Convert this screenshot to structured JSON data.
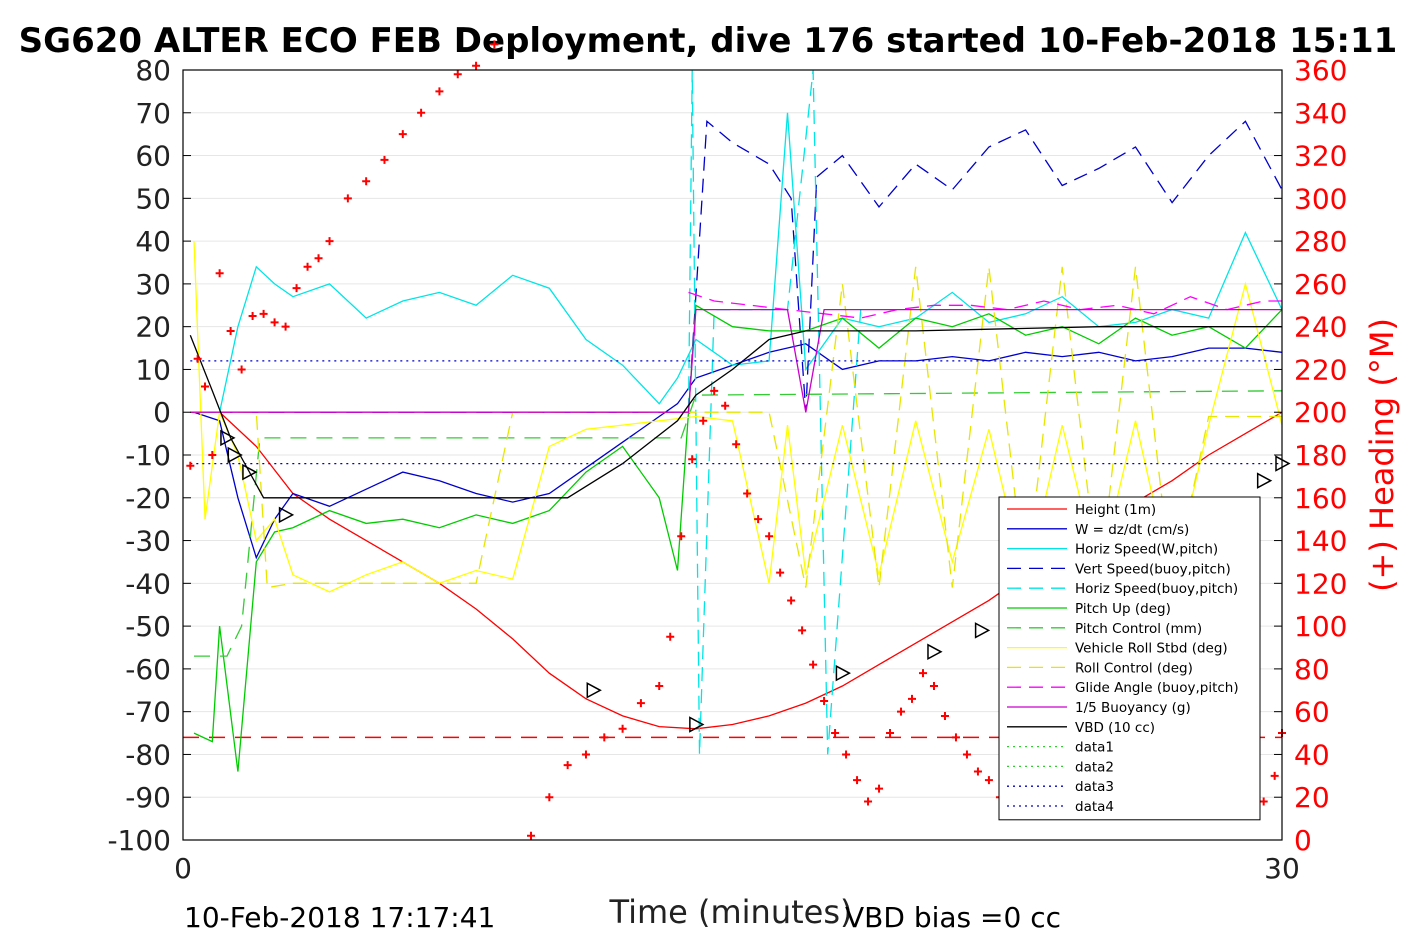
{
  "title": "SG620 ALTER ECO FEB Deployment, dive 176 started 10-Feb-2018 15:11",
  "footer": {
    "timestamp": "10-Feb-2018 17:17:41",
    "vbd_bias": "VBD bias =0 cc"
  },
  "chart_data": {
    "type": "line",
    "xlabel": "Time (minutes)",
    "ylabel": "",
    "y2label": "(+) Heading (°M)",
    "xlim": [
      0,
      30
    ],
    "ylim": [
      -100,
      80
    ],
    "y2lim": [
      0,
      360
    ],
    "x_ticks": [
      "0",
      "30"
    ],
    "y_ticks": [
      "80",
      "70",
      "60",
      "50",
      "40",
      "30",
      "20",
      "10",
      "0",
      "-10",
      "-20",
      "-30",
      "-40",
      "-50",
      "-60",
      "-70",
      "-80",
      "-90",
      "-100"
    ],
    "y2_ticks": [
      "360",
      "340",
      "320",
      "300",
      "280",
      "260",
      "240",
      "220",
      "200",
      "180",
      "160",
      "140",
      "120",
      "100",
      "80",
      "60",
      "40",
      "20",
      "0"
    ],
    "grid": true,
    "legend_position": "bottom-right",
    "colors": {
      "height": "#ff0000",
      "w": "#0000cc",
      "horiz_speed": "#00e5e5",
      "vert_speed_buoy": "#0000cc",
      "horiz_speed_buoy": "#00e5e5",
      "pitch_up": "#00cc00",
      "pitch_control": "#33cc33",
      "roll": "#ffff00",
      "roll_control": "#e6e600",
      "glide_angle": "#ff00ff",
      "buoyancy": "#cc00cc",
      "vbd": "#000000",
      "heading": "#ff0000"
    },
    "series": [
      {
        "name": "Height (1m)",
        "color": "#ff0000",
        "dash": "",
        "x": [
          0.2,
          1,
          2,
          3,
          4,
          5,
          6,
          7,
          8,
          9,
          10,
          11,
          12,
          13,
          14,
          15,
          16,
          17,
          18,
          19,
          20,
          21,
          22,
          23,
          24,
          25,
          26,
          27,
          28,
          29,
          30.0
        ],
        "y": [
          0,
          0,
          -8,
          -19,
          -25,
          -30,
          -35,
          -40,
          -46,
          -53,
          -61,
          -67,
          -71,
          -73.5,
          -74,
          -73,
          -71,
          -68,
          -64,
          -59,
          -54,
          -49,
          -44,
          -38,
          -32,
          -26,
          -21,
          -16,
          -10,
          -5,
          0
        ]
      },
      {
        "name": "W = dz/dt (cm/s)",
        "color": "#0000cc",
        "dash": "",
        "x": [
          0.3,
          1,
          1.5,
          2,
          2.5,
          3,
          4,
          5,
          6,
          7,
          8,
          9,
          10,
          11,
          12,
          13,
          13.5,
          14,
          15,
          16,
          17,
          18,
          19,
          20,
          21,
          22,
          23,
          24,
          25,
          26,
          27,
          28,
          29,
          30.0
        ],
        "y": [
          0,
          -2,
          -20,
          -34,
          -25,
          -19,
          -22,
          -18,
          -14,
          -16,
          -19,
          -21,
          -19,
          -13,
          -7,
          -1,
          2,
          8,
          11,
          14,
          16,
          10,
          12,
          12,
          13,
          12,
          14,
          13,
          14,
          12,
          13,
          15,
          15,
          14
        ]
      },
      {
        "name": "Horiz Speed(W,pitch)",
        "color": "#00e5e5",
        "dash": "",
        "x": [
          0.3,
          1,
          1.5,
          2,
          2.5,
          3,
          4,
          5,
          6,
          7,
          8,
          9,
          10,
          11,
          12,
          13,
          13.5,
          14,
          15,
          16,
          16.5,
          17,
          18,
          19,
          20,
          21,
          22,
          23,
          24,
          25,
          26,
          27,
          28,
          29,
          30.0
        ],
        "y": [
          0,
          0,
          20,
          34,
          30,
          27,
          30,
          22,
          26,
          28,
          25,
          32,
          29,
          17,
          11,
          2,
          8,
          17,
          11,
          12,
          70,
          10,
          22,
          20,
          22,
          28,
          21,
          23,
          27,
          20,
          21,
          24,
          22,
          42,
          24
        ]
      },
      {
        "name": "Vert Speed(buoy,pitch)",
        "color": "#0000cc",
        "dash": "14,8",
        "x": [
          13.8,
          14.3,
          15,
          16,
          16.6,
          17,
          17.3,
          18,
          19,
          20,
          21,
          22,
          23,
          24,
          25,
          26,
          27,
          28,
          29,
          30.0
        ],
        "y": [
          0,
          68,
          63,
          58,
          50,
          0,
          55,
          60,
          48,
          58,
          52,
          62,
          66,
          53,
          57,
          62,
          49,
          60,
          68,
          52
        ]
      },
      {
        "name": "Horiz Speed(buoy,pitch)",
        "color": "#00e5e5",
        "dash": "14,8",
        "x": [
          13.8,
          13.9,
          14.1,
          14.5,
          15.5,
          16.5,
          17.2,
          17.4,
          17.6,
          18.5
        ],
        "y": [
          0,
          80,
          -80,
          24,
          24,
          24,
          80,
          0,
          -80,
          24
        ]
      },
      {
        "name": "Pitch Up (deg)",
        "color": "#00cc00",
        "dash": "",
        "x": [
          0.3,
          0.8,
          1,
          1.5,
          2,
          2.5,
          3,
          4,
          5,
          6,
          7,
          8,
          9,
          10,
          11,
          12,
          13,
          13.5,
          14,
          15,
          16,
          17,
          18,
          19,
          20,
          21,
          22,
          23,
          24,
          25,
          26,
          27,
          28,
          29,
          30.0
        ],
        "y": [
          -75,
          -77,
          -50,
          -84,
          -35,
          -28,
          -27,
          -23,
          -26,
          -25,
          -27,
          -24,
          -26,
          -23,
          -14,
          -8,
          -20,
          -37,
          25,
          20,
          19,
          19,
          22,
          15,
          22,
          20,
          23,
          18,
          20,
          16,
          22,
          18,
          20,
          15,
          24
        ]
      },
      {
        "name": "Pitch Control (mm)",
        "color": "#33cc33",
        "dash": "16,10",
        "x": [
          0.3,
          1.2,
          1.6,
          2.1,
          2.6,
          3.2,
          13,
          13.6,
          14,
          30.0
        ],
        "y": [
          -57,
          -57,
          -50,
          -6,
          -6,
          -6,
          -6,
          -6,
          4,
          5
        ]
      },
      {
        "name": "Vehicle Roll Stbd (deg)",
        "color": "#ffff00",
        "dash": "",
        "x": [
          0.3,
          0.6,
          1,
          1.5,
          2,
          2.5,
          3,
          4,
          5,
          6,
          7,
          8,
          9,
          10,
          11,
          12,
          13,
          14,
          15,
          16,
          16.5,
          17,
          18,
          19,
          20,
          21,
          22,
          23,
          24,
          25,
          26,
          27,
          28,
          29,
          30.0
        ],
        "y": [
          40,
          -25,
          0,
          -10,
          -30,
          -25,
          -38,
          -42,
          -38,
          -35,
          -40,
          -37,
          -39,
          -8,
          -4,
          -3,
          -2,
          -1,
          -2,
          -40,
          -3,
          -38,
          -3,
          -38,
          -2,
          -35,
          -4,
          -40,
          -3,
          -38,
          -2,
          -40,
          -3,
          30,
          -3
        ]
      },
      {
        "name": "Roll Control (deg)",
        "color": "#e6e600",
        "dash": "14,8",
        "x": [
          0.3,
          2,
          2.3,
          3,
          5,
          8,
          9,
          13,
          16,
          17,
          18,
          19,
          20,
          21,
          22,
          23,
          24,
          25,
          26,
          27,
          28,
          29,
          30.0
        ],
        "y": [
          0,
          0,
          -41,
          -40,
          -40,
          -40,
          0,
          0,
          0,
          -41,
          30,
          -41,
          34,
          -41,
          34,
          -41,
          34,
          -41,
          34,
          -41,
          -1,
          -1,
          -1
        ]
      },
      {
        "name": "Glide Angle (buoy,pitch)",
        "color": "#ff00ff",
        "dash": "14,8",
        "x": [
          13.8,
          14.5,
          15.5,
          16.5,
          17.5,
          18.5,
          19.5,
          20.5,
          21.5,
          22.5,
          23.5,
          24.5,
          25.5,
          26.5,
          27.5,
          28.5,
          29.5,
          30.0
        ],
        "y": [
          28,
          26,
          25,
          24,
          23,
          22,
          24,
          25,
          25,
          24,
          26,
          24,
          25,
          23,
          27,
          24,
          26,
          26
        ]
      },
      {
        "name": "1/5 Buoyancy (g)",
        "color": "#cc00cc",
        "dash": "",
        "x": [
          0.2,
          13.8,
          14,
          16.5,
          17,
          17.5,
          30.0
        ],
        "y": [
          0,
          0,
          24,
          24,
          0,
          24,
          24
        ]
      },
      {
        "name": "VBD (10 cc)",
        "color": "#000000",
        "dash": "",
        "x": [
          0.2,
          0.8,
          1.3,
          2.2,
          3,
          6,
          10,
          10.5,
          12,
          13.5,
          14,
          15,
          16,
          17,
          18,
          19,
          20,
          25,
          30.0
        ],
        "y": [
          18,
          5,
          -6,
          -20,
          -20,
          -20,
          -20,
          -20,
          -12,
          -2,
          4,
          10,
          17,
          19,
          19,
          19,
          19,
          20,
          20
        ]
      },
      {
        "name": "data1",
        "color": "#33cc33",
        "dash": "2,4",
        "x": [],
        "y": []
      },
      {
        "name": "data2",
        "color": "#33cc33",
        "dash": "2,4",
        "x": [],
        "y": []
      },
      {
        "name": "data3",
        "color": "#0000cc",
        "dash": "2,4",
        "x": [
          0.2,
          30.0
        ],
        "y": [
          12,
          12
        ]
      },
      {
        "name": "data4",
        "color": "#0000cc",
        "dash": "2,4",
        "x": [
          0.2,
          30.0
        ],
        "y": [
          -12,
          -12
        ]
      }
    ],
    "reference_lines": [
      {
        "y": -76,
        "color": "#ff0000",
        "dash": "16,10"
      },
      {
        "y": 0,
        "color": "#8a2be2",
        "dash": "16,10",
        "x": [
          0.2,
          13.8
        ]
      }
    ],
    "heading_series": {
      "axis": "right",
      "color": "#ff0000",
      "x": [
        0.2,
        0.4,
        0.6,
        0.8,
        1,
        1.3,
        1.6,
        1.9,
        2.2,
        2.5,
        2.8,
        3.1,
        3.4,
        3.7,
        4,
        4.5,
        5,
        5.5,
        6,
        6.5,
        7,
        7.5,
        8,
        8.5,
        9.5,
        10,
        10.5,
        11,
        11.5,
        12,
        12.5,
        13,
        13.3,
        13.6,
        13.9,
        14.2,
        14.5,
        14.8,
        15.1,
        15.4,
        15.7,
        16,
        16.3,
        16.6,
        16.9,
        17.2,
        17.5,
        17.8,
        18.1,
        18.4,
        18.7,
        19,
        19.3,
        19.6,
        19.9,
        20.2,
        20.5,
        20.8,
        21.1,
        21.4,
        21.7,
        22,
        22.3,
        22.6,
        22.9,
        23.2,
        23.5,
        23.8,
        24.1,
        24.4,
        24.7,
        25,
        25.3,
        25.6,
        25.9,
        26.2,
        26.5,
        26.8,
        27.1,
        27.4,
        27.7,
        28,
        28.3,
        28.6,
        28.9,
        29.2,
        29.5,
        29.8,
        30.0
      ],
      "y": [
        175,
        225,
        212,
        180,
        265,
        238,
        220,
        245,
        246,
        242,
        240,
        258,
        268,
        272,
        280,
        300,
        308,
        318,
        330,
        340,
        350,
        358,
        362,
        372,
        2,
        20,
        35,
        40,
        48,
        52,
        64,
        72,
        95,
        142,
        178,
        196,
        210,
        203,
        185,
        162,
        150,
        142,
        125,
        112,
        98,
        82,
        65,
        50,
        40,
        28,
        18,
        24,
        50,
        60,
        66,
        78,
        72,
        58,
        48,
        40,
        32,
        28,
        20,
        26,
        38,
        50,
        64,
        80,
        86,
        72,
        62,
        54,
        42,
        36,
        28,
        24,
        18,
        16,
        28,
        36,
        44,
        52,
        48,
        40,
        28,
        22,
        18,
        30,
        50
      ]
    },
    "markers": {
      "symbol": "triangle",
      "x": [
        1.2,
        1.4,
        1.8,
        2.8,
        11.2,
        14,
        18,
        20.5,
        21.8,
        23,
        24.5,
        25.5,
        26.8,
        28.2,
        29.5,
        30.0
      ],
      "y": [
        -6,
        -10,
        -14,
        -24,
        -65,
        -73,
        -61,
        -56,
        -51,
        -44,
        -38,
        -34,
        -28,
        -22,
        -16,
        -12
      ]
    }
  },
  "legend": [
    {
      "label": "Height (1m)",
      "color": "#ff0000",
      "dash": ""
    },
    {
      "label": "W = dz/dt (cm/s)",
      "color": "#0000cc",
      "dash": ""
    },
    {
      "label": "Horiz Speed(W,pitch)",
      "color": "#00e5e5",
      "dash": ""
    },
    {
      "label": "Vert Speed(buoy,pitch)",
      "color": "#0000cc",
      "dash": "14,8"
    },
    {
      "label": "Horiz Speed(buoy,pitch)",
      "color": "#00e5e5",
      "dash": "14,8"
    },
    {
      "label": "Pitch Up (deg)",
      "color": "#00cc00",
      "dash": ""
    },
    {
      "label": "Pitch Control (mm)",
      "color": "#33cc33",
      "dash": "14,8"
    },
    {
      "label": "Vehicle Roll Stbd (deg)",
      "color": "#ffff00",
      "dash": ""
    },
    {
      "label": "Roll Control (deg)",
      "color": "#e6e600",
      "dash": "14,8"
    },
    {
      "label": "Glide Angle (buoy,pitch)",
      "color": "#ff00ff",
      "dash": "14,8"
    },
    {
      "label": "1/5 Buoyancy (g)",
      "color": "#cc00cc",
      "dash": ""
    },
    {
      "label": "VBD (10 cc)",
      "color": "#000000",
      "dash": ""
    },
    {
      "label": "data1",
      "color": "#33cc33",
      "dash": "2,4"
    },
    {
      "label": "data2",
      "color": "#33cc33",
      "dash": "2,4"
    },
    {
      "label": "data3",
      "color": "#0000cc",
      "dash": "2,4"
    },
    {
      "label": "data4",
      "color": "#0000cc",
      "dash": "2,4"
    }
  ]
}
